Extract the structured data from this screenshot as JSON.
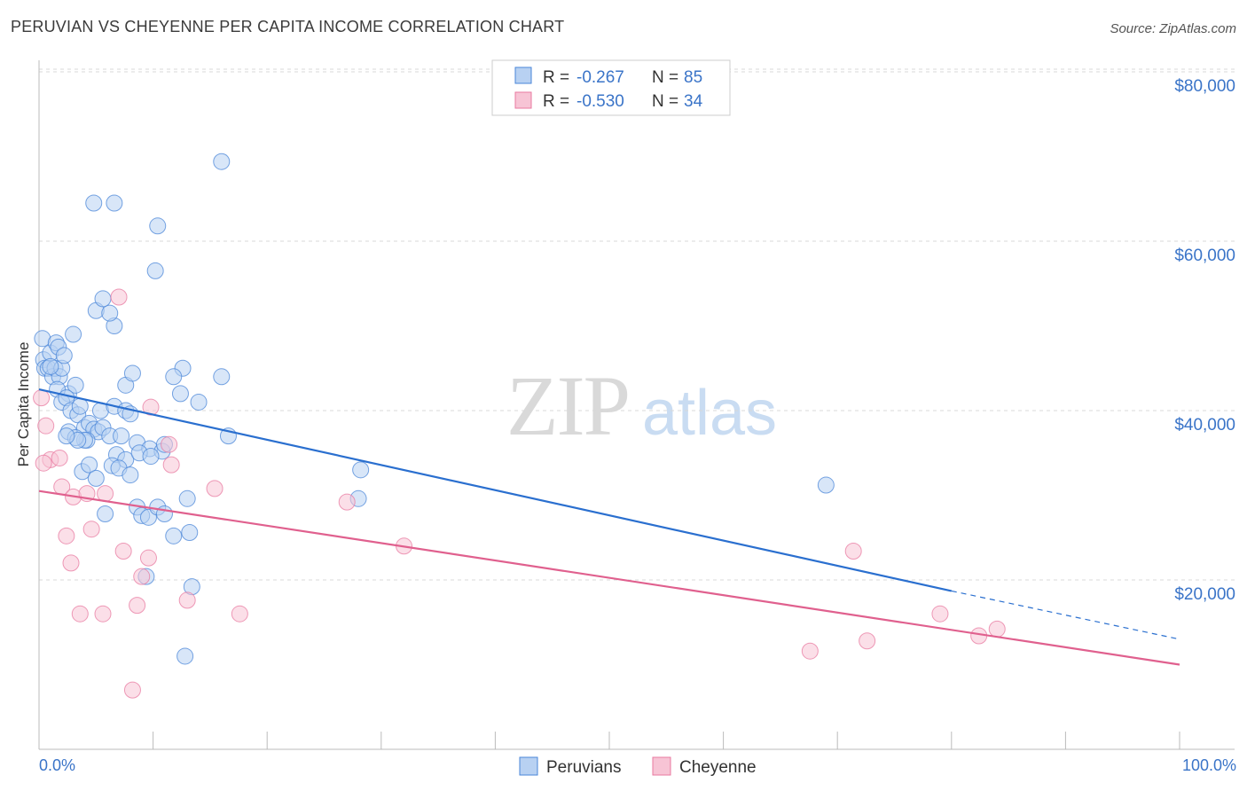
{
  "header": {
    "title": "PERUVIAN VS CHEYENNE PER CAPITA INCOME CORRELATION CHART",
    "source": "Source: ZipAtlas.com"
  },
  "watermark": {
    "zip": "ZIP",
    "atlas": "atlas"
  },
  "colors": {
    "blue": "#4a86d8",
    "blue_fill": "#b8d1f2",
    "blue_line": "#2a6fcf",
    "pink": "#e87aa0",
    "pink_fill": "#f7c4d5",
    "pink_line": "#e0608e",
    "axis_label": "#3a74c8",
    "grid": "#d8d8d8"
  },
  "stats": {
    "blue": {
      "r_label": "R = ",
      "r_value": "-0.267",
      "n_label": "N = ",
      "n_value": "85"
    },
    "pink": {
      "r_label": "R = ",
      "r_value": "-0.530",
      "n_label": "N = ",
      "n_value": "34"
    }
  },
  "chart_data": {
    "type": "scatter",
    "title": "PERUVIAN VS CHEYENNE PER CAPITA INCOME CORRELATION CHART",
    "xlabel": "",
    "ylabel": "Per Capita Income",
    "xlim": [
      0,
      100
    ],
    "ylim": [
      0,
      80000
    ],
    "x_tick_labels": [
      "0.0%",
      "100.0%"
    ],
    "y_ticks": [
      20000,
      40000,
      60000,
      80000
    ],
    "y_tick_labels": [
      "$20,000",
      "$40,000",
      "$60,000",
      "$80,000"
    ],
    "legend_position": "bottom-center",
    "series": [
      {
        "name": "Peruvians",
        "color": "blue",
        "trend": {
          "x0": 0,
          "y0": 42500,
          "x1": 80,
          "y1": 18700,
          "dash_to_x": 100,
          "dash_to_y": 13000
        },
        "points": [
          [
            0.3,
            48500
          ],
          [
            0.4,
            46000
          ],
          [
            0.5,
            45000
          ],
          [
            0.8,
            45000
          ],
          [
            1.0,
            46800
          ],
          [
            1.2,
            44000
          ],
          [
            1.4,
            45000
          ],
          [
            1.5,
            48000
          ],
          [
            1.7,
            47500
          ],
          [
            1.8,
            44000
          ],
          [
            2.0,
            45000
          ],
          [
            2.2,
            46500
          ],
          [
            2.6,
            42000
          ],
          [
            3.0,
            49000
          ],
          [
            3.2,
            43000
          ],
          [
            1.6,
            42500
          ],
          [
            2.0,
            41000
          ],
          [
            2.4,
            41500
          ],
          [
            2.8,
            40000
          ],
          [
            3.4,
            39500
          ],
          [
            3.6,
            40500
          ],
          [
            4.0,
            38000
          ],
          [
            4.4,
            38500
          ],
          [
            4.8,
            37800
          ],
          [
            5.2,
            37500
          ],
          [
            5.6,
            38000
          ],
          [
            2.6,
            37500
          ],
          [
            4.2,
            36500
          ],
          [
            4.0,
            36500
          ],
          [
            6.2,
            37000
          ],
          [
            7.2,
            37000
          ],
          [
            8.6,
            36200
          ],
          [
            9.7,
            35500
          ],
          [
            10.8,
            35200
          ],
          [
            11.0,
            36000
          ],
          [
            5.4,
            40000
          ],
          [
            6.6,
            40500
          ],
          [
            7.6,
            40000
          ],
          [
            8.0,
            39600
          ],
          [
            6.8,
            34800
          ],
          [
            7.6,
            34200
          ],
          [
            8.8,
            35000
          ],
          [
            9.8,
            34600
          ],
          [
            6.4,
            33500
          ],
          [
            7.0,
            33200
          ],
          [
            3.8,
            32800
          ],
          [
            4.4,
            33600
          ],
          [
            5.0,
            32000
          ],
          [
            8.0,
            32400
          ],
          [
            5.8,
            27800
          ],
          [
            8.6,
            28600
          ],
          [
            9.0,
            27600
          ],
          [
            9.6,
            27400
          ],
          [
            10.4,
            28600
          ],
          [
            11.0,
            27800
          ],
          [
            11.8,
            25200
          ],
          [
            13.2,
            25600
          ],
          [
            13.0,
            29600
          ],
          [
            14.0,
            41000
          ],
          [
            16.0,
            44000
          ],
          [
            16.6,
            37000
          ],
          [
            12.4,
            42000
          ],
          [
            12.6,
            45000
          ],
          [
            11.8,
            44000
          ],
          [
            7.6,
            43000
          ],
          [
            8.2,
            44400
          ],
          [
            6.6,
            50000
          ],
          [
            5.0,
            51800
          ],
          [
            6.2,
            51500
          ],
          [
            5.6,
            53200
          ],
          [
            10.2,
            56500
          ],
          [
            10.4,
            61800
          ],
          [
            4.8,
            64500
          ],
          [
            6.6,
            64500
          ],
          [
            16.0,
            69400
          ],
          [
            28.2,
            33000
          ],
          [
            28.0,
            29600
          ],
          [
            69.0,
            31200
          ],
          [
            13.4,
            19200
          ],
          [
            12.8,
            11000
          ],
          [
            9.4,
            20400
          ],
          [
            3.2,
            36800
          ],
          [
            3.4,
            36500
          ],
          [
            2.4,
            37000
          ],
          [
            1.0,
            45200
          ]
        ]
      },
      {
        "name": "Cheyenne",
        "color": "pink",
        "trend": {
          "x0": 0,
          "y0": 30500,
          "x1": 100,
          "y1": 10000
        },
        "points": [
          [
            0.2,
            41500
          ],
          [
            0.6,
            38200
          ],
          [
            1.0,
            34200
          ],
          [
            1.8,
            34400
          ],
          [
            2.0,
            31000
          ],
          [
            2.4,
            25200
          ],
          [
            2.8,
            22000
          ],
          [
            3.0,
            29800
          ],
          [
            3.6,
            16000
          ],
          [
            4.2,
            30200
          ],
          [
            4.6,
            26000
          ],
          [
            5.6,
            16000
          ],
          [
            5.8,
            30200
          ],
          [
            7.4,
            23400
          ],
          [
            7.0,
            53400
          ],
          [
            8.6,
            17000
          ],
          [
            9.0,
            20400
          ],
          [
            9.6,
            22600
          ],
          [
            9.8,
            40400
          ],
          [
            11.4,
            36000
          ],
          [
            11.6,
            33600
          ],
          [
            13.0,
            17600
          ],
          [
            15.4,
            30800
          ],
          [
            17.6,
            16000
          ],
          [
            27.0,
            29200
          ],
          [
            32.0,
            24000
          ],
          [
            67.6,
            11600
          ],
          [
            71.4,
            23400
          ],
          [
            72.6,
            12800
          ],
          [
            79.0,
            16000
          ],
          [
            82.4,
            13400
          ],
          [
            84.0,
            14200
          ],
          [
            8.2,
            7000
          ],
          [
            0.4,
            33800
          ]
        ]
      }
    ]
  }
}
